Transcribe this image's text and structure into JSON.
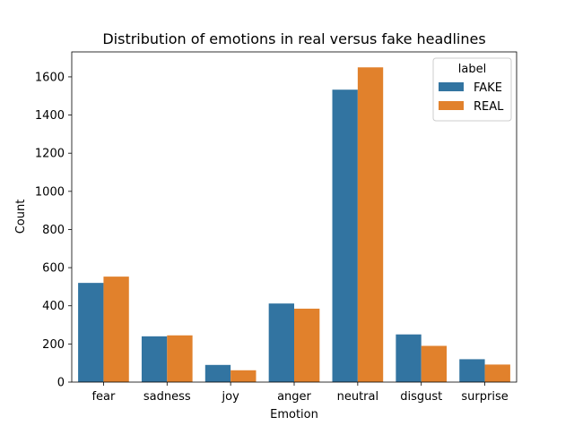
{
  "chart_data": {
    "type": "bar",
    "title": "Distribution of emotions in real versus fake headlines",
    "xlabel": "Emotion",
    "ylabel": "Count",
    "categories": [
      "fear",
      "sadness",
      "joy",
      "anger",
      "neutral",
      "disgust",
      "surprise"
    ],
    "series": [
      {
        "name": "FAKE",
        "color": "#3274a1",
        "values": [
          520,
          240,
          90,
          412,
          1533,
          250,
          120
        ]
      },
      {
        "name": "REAL",
        "color": "#e1812c",
        "values": [
          553,
          245,
          62,
          385,
          1650,
          190,
          92
        ]
      }
    ],
    "ylim": [
      0,
      1731
    ],
    "yticks": [
      0,
      200,
      400,
      600,
      800,
      1000,
      1200,
      1400,
      1600
    ],
    "ytick_labels": [
      "0",
      "200",
      "400",
      "600",
      "800",
      "1000",
      "1200",
      "1400",
      "1600"
    ],
    "grid": false,
    "legend": {
      "title": "label",
      "position": "top-right"
    }
  }
}
